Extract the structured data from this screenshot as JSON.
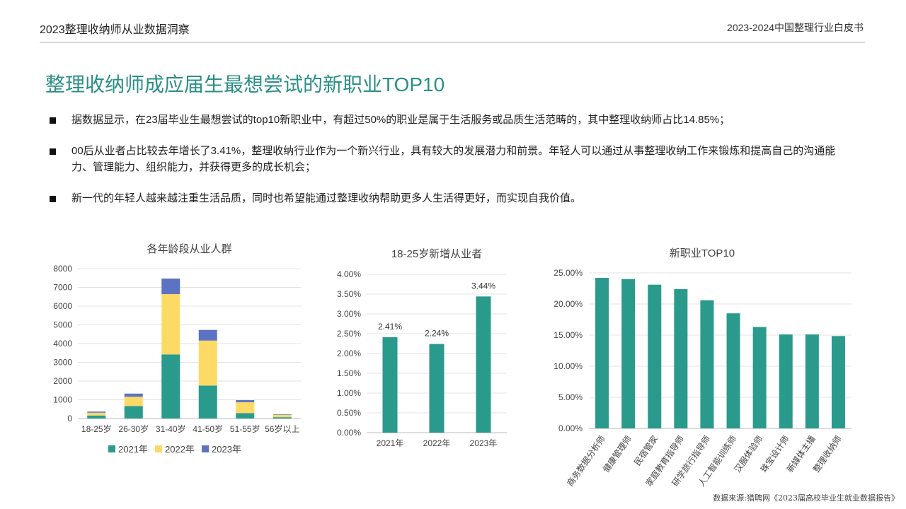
{
  "header": {
    "left": "2023整理收纳师从业数据洞察",
    "right": "2023-2024中国整理行业白皮书"
  },
  "title": "整理收纳师成应届生最想尝试的新职业TOP10",
  "bullets": [
    "据数据显示，在23届毕业生最想尝试的top10新职业中，有超过50%的职业是属于生活服务或品质生活范畴的，其中整理收纳师占比14.85%；",
    "00后从业者占比较去年增长了3.41%，整理收纳行业作为一个新兴行业，具有较大的发展潜力和前景。年轻人可以通过从事整理收纳工作来锻炼和提高自己的沟通能力、管理能力、组织能力，并获得更多的成长机会；",
    "新一代的年轻人越来越注重生活品质，同时也希望能通过整理收纳帮助更多人生活得更好，而实现自我价值。"
  ],
  "source": "数据来源:猎聘网《2023届高校毕业生就业数据报告》",
  "colors": {
    "teal": "#2a9a8c",
    "yellow": "#fdd966",
    "blue": "#5b73c0",
    "title": "#2a8f86"
  },
  "chart_data": [
    {
      "type": "bar",
      "stacked": true,
      "title": "各年龄段从业人群",
      "categories": [
        "18-25岁",
        "26-30岁",
        "31-40岁",
        "41-50岁",
        "51-55岁",
        "56岁以上"
      ],
      "series": [
        {
          "name": "2021年",
          "values": [
            160,
            670,
            3420,
            1760,
            290,
            70
          ]
        },
        {
          "name": "2022年",
          "values": [
            150,
            490,
            3220,
            2400,
            580,
            130
          ]
        },
        {
          "name": "2023年",
          "values": [
            60,
            170,
            830,
            570,
            110,
            30
          ]
        }
      ],
      "yticks": [
        "0",
        "1000",
        "2000",
        "3000",
        "4000",
        "5000",
        "6000",
        "7000",
        "8000"
      ],
      "ylim": [
        0,
        8000
      ],
      "grid": true,
      "legend": "bottom"
    },
    {
      "type": "bar",
      "title": "18-25岁新增从业者",
      "categories": [
        "2021年",
        "2022年",
        "2023年"
      ],
      "values": [
        2.41,
        2.24,
        3.44
      ],
      "data_labels": [
        "2.41%",
        "2.24%",
        "3.44%"
      ],
      "yticks": [
        "0.00%",
        "0.50%",
        "1.00%",
        "1.50%",
        "2.00%",
        "2.50%",
        "3.00%",
        "3.50%",
        "4.00%"
      ],
      "ylim": [
        0,
        4
      ],
      "grid": true
    },
    {
      "type": "bar",
      "title": "新职业TOP10",
      "categories": [
        "商务数据分析师",
        "健康管理师",
        "民宿管家",
        "家庭教育指导师",
        "研学旅行指导师",
        "人工智能训练师",
        "汉服体验师",
        "珠宝设计师",
        "新媒体主播",
        "整理收纳师"
      ],
      "values": [
        24.2,
        24.0,
        23.1,
        22.4,
        20.6,
        18.5,
        16.3,
        15.1,
        15.1,
        14.85
      ],
      "yticks": [
        "0.00%",
        "5.00%",
        "10.00%",
        "15.00%",
        "20.00%",
        "25.00%"
      ],
      "ylim": [
        0,
        25
      ],
      "grid": true
    }
  ]
}
